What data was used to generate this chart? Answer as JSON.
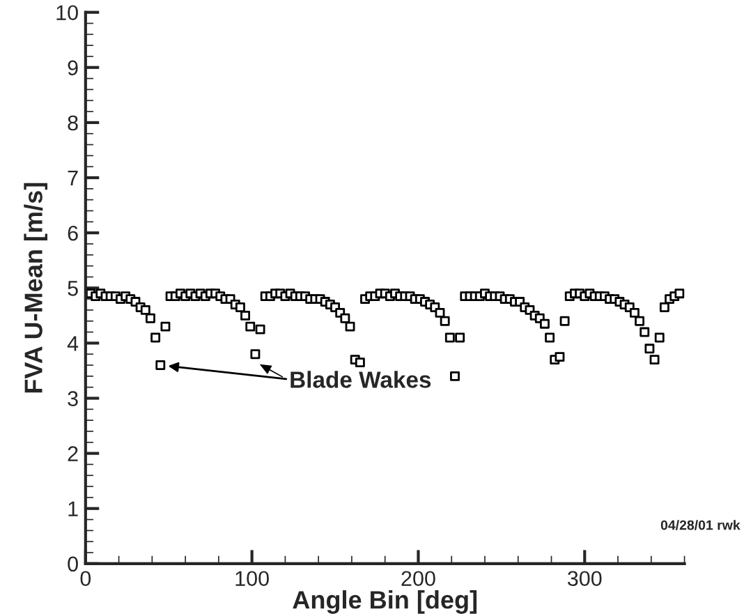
{
  "chart_data": {
    "type": "scatter",
    "xlabel": "Angle Bin [deg]",
    "ylabel": "FVA U-Mean [m/s]",
    "x": [
      1,
      3,
      6,
      9,
      12,
      15,
      18,
      21,
      24,
      27,
      30,
      33,
      36,
      39,
      42,
      45,
      48,
      51,
      54,
      57,
      60,
      63,
      66,
      69,
      72,
      75,
      78,
      81,
      84,
      87,
      90,
      93,
      96,
      99,
      102,
      105,
      108,
      111,
      114,
      117,
      120,
      123,
      126,
      129,
      132,
      135,
      138,
      141,
      144,
      147,
      150,
      153,
      156,
      159,
      162,
      165,
      168,
      171,
      174,
      177,
      180,
      183,
      186,
      189,
      192,
      195,
      198,
      201,
      204,
      207,
      210,
      213,
      216,
      219,
      222,
      225,
      228,
      231,
      234,
      237,
      240,
      243,
      246,
      249,
      252,
      255,
      258,
      261,
      264,
      267,
      270,
      273,
      276,
      279,
      282,
      285,
      288,
      291,
      294,
      297,
      300,
      303,
      306,
      309,
      312,
      315,
      318,
      321,
      324,
      327,
      330,
      333,
      336,
      339,
      342,
      345,
      348,
      351,
      354,
      357
    ],
    "series": [
      {
        "color": "#000000",
        "values": [
          4.9,
          4.9,
          4.85,
          4.9,
          4.85,
          4.85,
          4.85,
          4.8,
          4.85,
          4.8,
          4.75,
          4.65,
          4.6,
          4.45,
          4.1,
          3.6,
          4.3,
          4.85,
          4.85,
          4.9,
          4.85,
          4.9,
          4.85,
          4.9,
          4.85,
          4.9,
          4.9,
          4.85,
          4.8,
          4.8,
          4.7,
          4.65,
          4.5,
          4.3,
          3.8,
          4.25,
          4.85,
          4.85,
          4.9,
          4.9,
          4.85,
          4.9,
          4.85,
          4.85,
          4.85,
          4.8,
          4.8,
          4.8,
          4.75,
          4.7,
          4.65,
          4.55,
          4.45,
          4.3,
          3.7,
          3.65,
          4.8,
          4.85,
          4.85,
          4.9,
          4.9,
          4.85,
          4.9,
          4.85,
          4.85,
          4.85,
          4.8,
          4.8,
          4.75,
          4.7,
          4.65,
          4.55,
          4.4,
          4.1,
          3.4,
          4.1,
          4.85,
          4.85,
          4.85,
          4.85,
          4.9,
          4.85,
          4.85,
          4.85,
          4.8,
          4.8,
          4.75,
          4.75,
          4.65,
          4.6,
          4.5,
          4.45,
          4.35,
          4.1,
          3.7,
          3.75,
          4.4,
          4.85,
          4.9,
          4.9,
          4.85,
          4.9,
          4.85,
          4.85,
          4.85,
          4.8,
          4.8,
          4.75,
          4.7,
          4.65,
          4.55,
          4.4,
          4.2,
          3.9,
          3.7,
          4.1,
          4.65,
          4.8,
          4.85,
          4.9
        ]
      }
    ],
    "marker": "square",
    "grid": false,
    "xlim": [
      0,
      360
    ],
    "xticks": [
      0,
      100,
      200,
      300
    ],
    "ylim": [
      0,
      10
    ],
    "yticks": [
      0,
      1,
      2,
      3,
      4,
      5,
      6,
      7,
      8,
      9,
      10
    ],
    "annotations": [
      {
        "text": "Blade Wakes",
        "x": 45,
        "y": 3.6
      },
      "04/28/01 rwk"
    ]
  }
}
